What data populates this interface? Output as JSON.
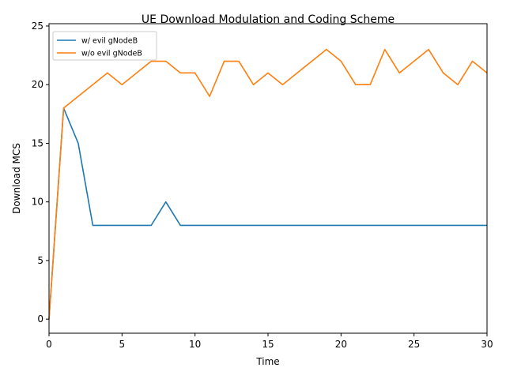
{
  "chart_data": {
    "type": "line",
    "title": "UE Download Modulation and Coding Scheme",
    "xlabel": "Time",
    "ylabel": "Download MCS",
    "xlim": [
      0,
      30
    ],
    "ylim": [
      -1.2,
      25.2
    ],
    "xticks": [
      0,
      5,
      10,
      15,
      20,
      25,
      30
    ],
    "yticks": [
      0,
      5,
      10,
      15,
      20,
      25
    ],
    "grid": false,
    "legend_position": "top-left",
    "x": [
      0,
      1,
      2,
      3,
      4,
      5,
      6,
      7,
      8,
      9,
      10,
      11,
      12,
      13,
      14,
      15,
      16,
      17,
      18,
      19,
      20,
      21,
      22,
      23,
      24,
      25,
      26,
      27,
      28,
      29,
      30
    ],
    "series": [
      {
        "name": "w/ evil gNodeB",
        "color": "#1f77b4",
        "values": [
          0,
          18,
          15,
          8,
          8,
          8,
          8,
          8,
          10,
          8,
          8,
          8,
          8,
          8,
          8,
          8,
          8,
          8,
          8,
          8,
          8,
          8,
          8,
          8,
          8,
          8,
          8,
          8,
          8,
          8,
          8
        ]
      },
      {
        "name": "w/o evil gNodeB",
        "color": "#ff7f0e",
        "values": [
          0,
          18,
          19,
          20,
          21,
          20,
          21,
          22,
          22,
          21,
          21,
          19,
          22,
          22,
          20,
          21,
          20,
          21,
          22,
          23,
          22,
          20,
          20,
          23,
          21,
          22,
          23,
          21,
          20,
          22,
          21
        ]
      }
    ]
  }
}
